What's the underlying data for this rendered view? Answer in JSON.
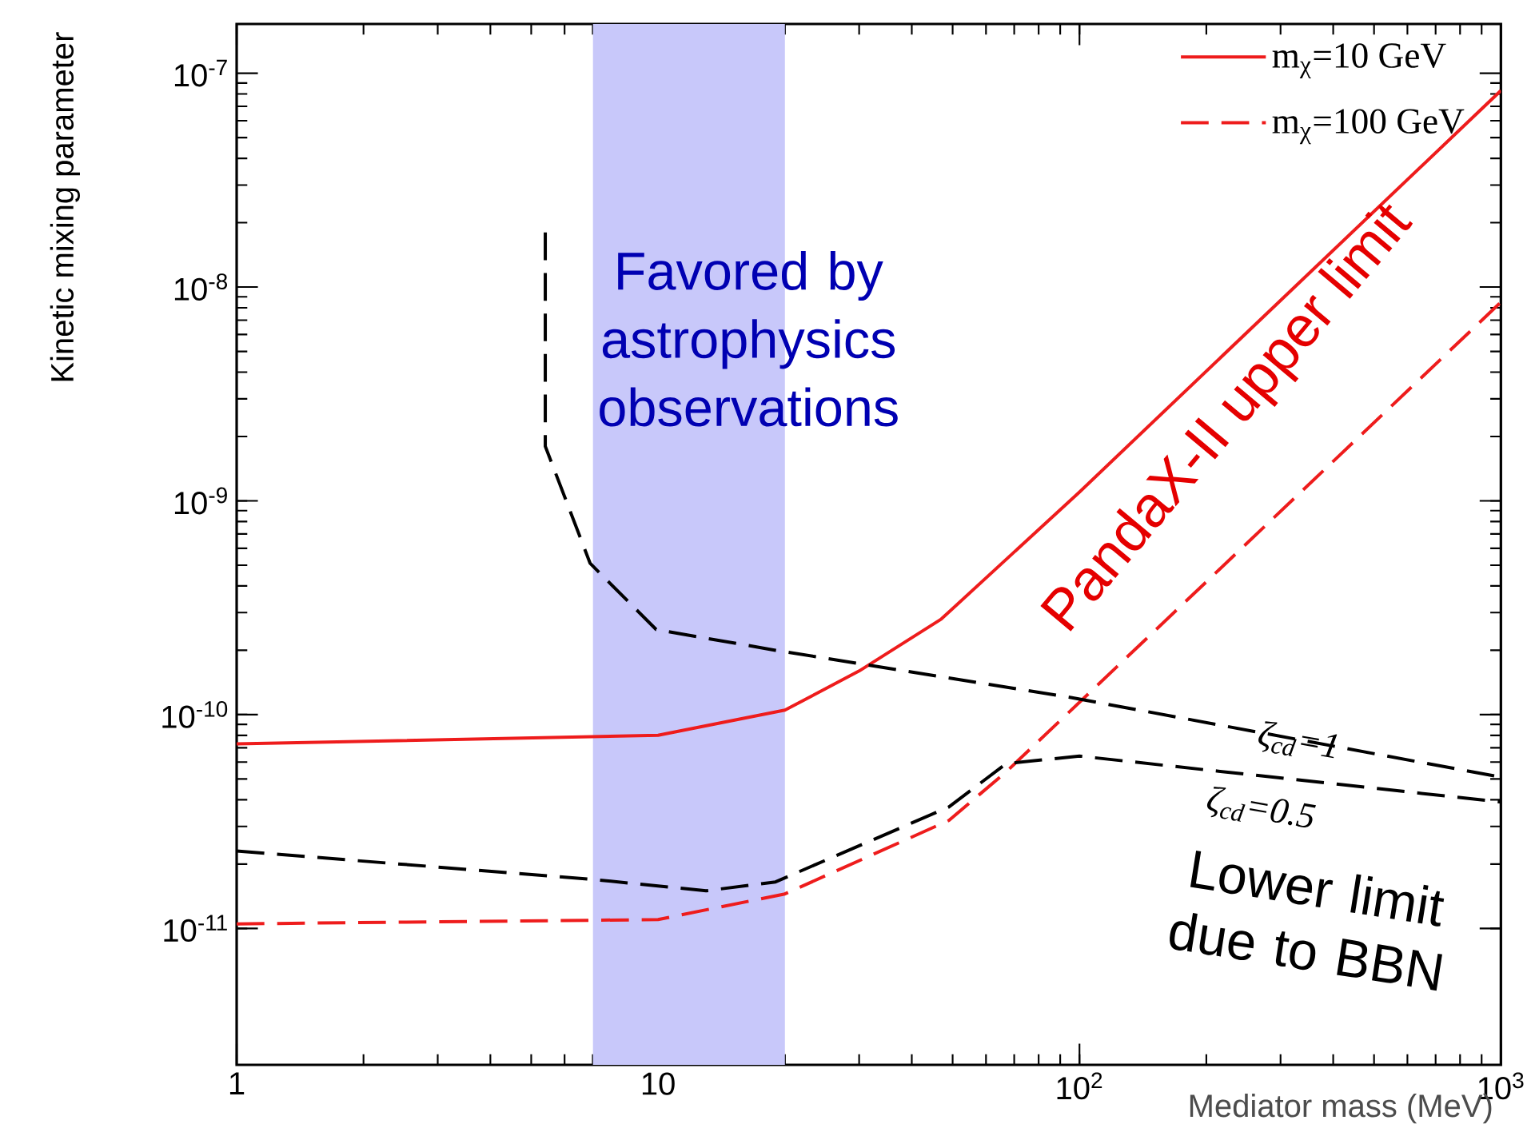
{
  "chart_data": {
    "type": "line",
    "xlabel": "Mediator mass (MeV)",
    "ylabel": "Kinetic mixing parameter",
    "log": "xy",
    "xlim": [
      1,
      1000
    ],
    "ylim": [
      2.3e-12,
      1.7e-07
    ],
    "xticks": [
      1,
      10,
      {
        "value": 100,
        "label": "10$^{2}$"
      },
      {
        "value": 1000,
        "label": "10$^{3}$"
      }
    ],
    "yticks": [
      {
        "value": 1e-11,
        "label": "10$^{-11}$"
      },
      {
        "value": 1e-10,
        "label": "10$^{-10}$"
      },
      {
        "value": 1e-09,
        "label": "10$^{-9}$"
      },
      {
        "value": 1e-08,
        "label": "10$^{-8}$"
      },
      {
        "value": 1e-07,
        "label": "10$^{-7}$"
      }
    ],
    "grid": false,
    "legend": "top right",
    "marker": "none",
    "series": [
      {
        "name": "m$_{χ}$=10 GeV",
        "color": "#ee1c1c",
        "line_style": "solid",
        "x": [
          1,
          10,
          20,
          30,
          47,
          100,
          1000
        ],
        "values": [
          7.3e-11,
          8e-11,
          1.05e-10,
          1.6e-10,
          2.8e-10,
          1.1e-09,
          8.3e-08
        ]
      },
      {
        "name": "m$_{χ}$=100 GeV",
        "color": "#ee1c1c",
        "line_style": "dashed",
        "x": [
          1,
          10,
          20,
          49,
          67,
          1000
        ],
        "values": [
          1.05e-11,
          1.1e-11,
          1.45e-11,
          3.2e-11,
          5.4e-11,
          8.5e-09
        ]
      },
      {
        "color": "#000000",
        "line_style": "dashed",
        "x": [
          5.4,
          5.4,
          6.9,
          9.9,
          19,
          96,
          1000
        ],
        "values": [
          1.8e-08,
          1.8e-09,
          5.1e-10,
          2.5e-10,
          2e-10,
          1.2e-10,
          5.1e-11
        ]
      },
      {
        "color": "#000000",
        "line_style": "dashed",
        "x": [
          1,
          6.9,
          13,
          19,
          49,
          67,
          100,
          1000
        ],
        "values": [
          2.3e-11,
          1.7e-11,
          1.5e-11,
          1.65e-11,
          3.7e-11,
          5.9e-11,
          6.4e-11,
          3.9e-11
        ]
      }
    ],
    "bands": [
      {
        "axis": "x",
        "from": 7,
        "to": 20,
        "label": "Favored by astrophysics observations",
        "color": "#c8c8fa"
      }
    ],
    "annotations": [
      "PandaX-II upper limit",
      "Lower limit due to BBN",
      "ζ$_{cd}$=1",
      "ζ$_{cd}$=0.5"
    ]
  }
}
